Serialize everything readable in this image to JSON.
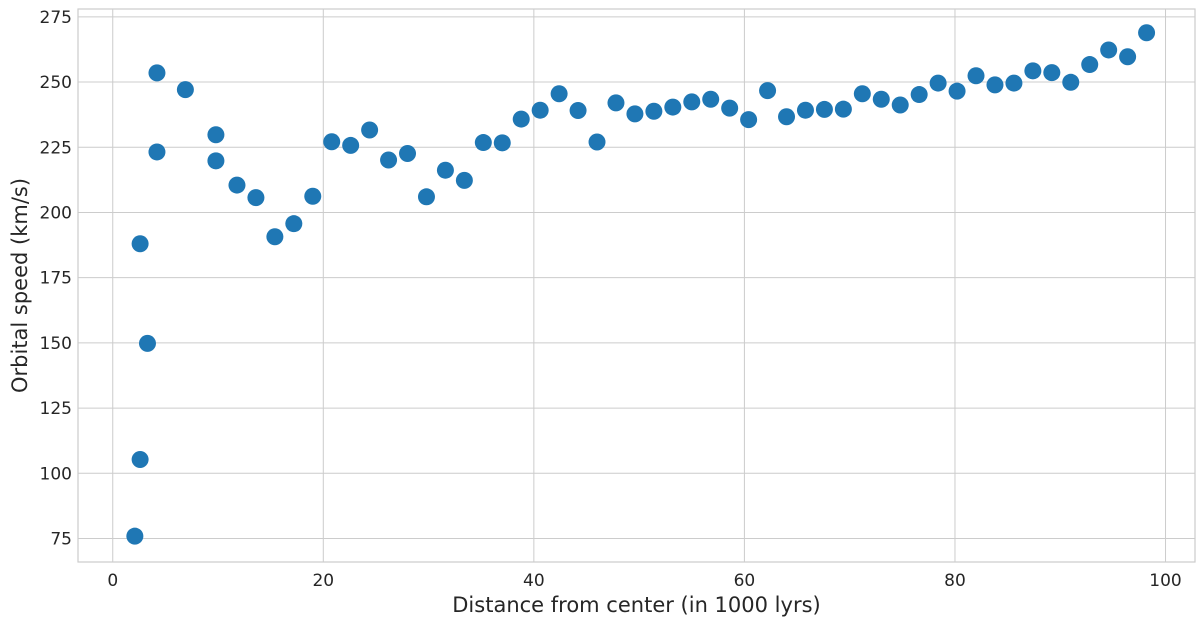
{
  "chart_data": {
    "type": "scatter",
    "xlabel": "Distance from center (in 1000 lyrs)",
    "ylabel": "Orbital speed (km/s)",
    "xlim": [
      -3.3,
      102.8
    ],
    "ylim": [
      66,
      278
    ],
    "xticks": [
      0,
      20,
      40,
      60,
      80,
      100
    ],
    "yticks": [
      75,
      100,
      125,
      150,
      175,
      200,
      225,
      250,
      275
    ],
    "grid": true,
    "marker_color": "#1f77b4",
    "x": [
      2.1,
      2.6,
      2.6,
      3.3,
      4.2,
      4.2,
      6.9,
      9.8,
      9.8,
      11.8,
      13.6,
      15.4,
      17.2,
      19.0,
      20.8,
      22.6,
      24.4,
      26.2,
      28.0,
      29.8,
      31.6,
      33.4,
      35.2,
      37.0,
      38.8,
      40.6,
      42.4,
      44.2,
      46.0,
      47.8,
      49.6,
      51.4,
      53.2,
      55.0,
      56.8,
      58.6,
      60.4,
      62.2,
      64.0,
      65.8,
      67.6,
      69.4,
      71.2,
      73.0,
      74.8,
      76.6,
      78.4,
      80.2,
      82.0,
      83.8,
      85.6,
      87.4,
      89.2,
      91.0,
      92.8,
      94.6,
      96.4,
      98.2
    ],
    "y": [
      75.9,
      105.3,
      188.0,
      149.8,
      223.2,
      253.5,
      247.1,
      229.8,
      219.8,
      210.5,
      205.7,
      190.7,
      195.7,
      206.2,
      227.1,
      225.7,
      231.6,
      220.1,
      222.6,
      206.0,
      216.2,
      212.3,
      226.8,
      226.7,
      235.8,
      239.2,
      245.5,
      239.1,
      227.0,
      242.0,
      237.8,
      238.8,
      240.4,
      242.4,
      243.4,
      240.0,
      235.6,
      246.7,
      236.7,
      239.2,
      239.5,
      239.6,
      245.5,
      243.4,
      241.2,
      245.2,
      249.6,
      246.5,
      252.4,
      248.9,
      249.6,
      254.3,
      253.6,
      249.9,
      256.7,
      262.3,
      259.7,
      268.9
    ]
  }
}
